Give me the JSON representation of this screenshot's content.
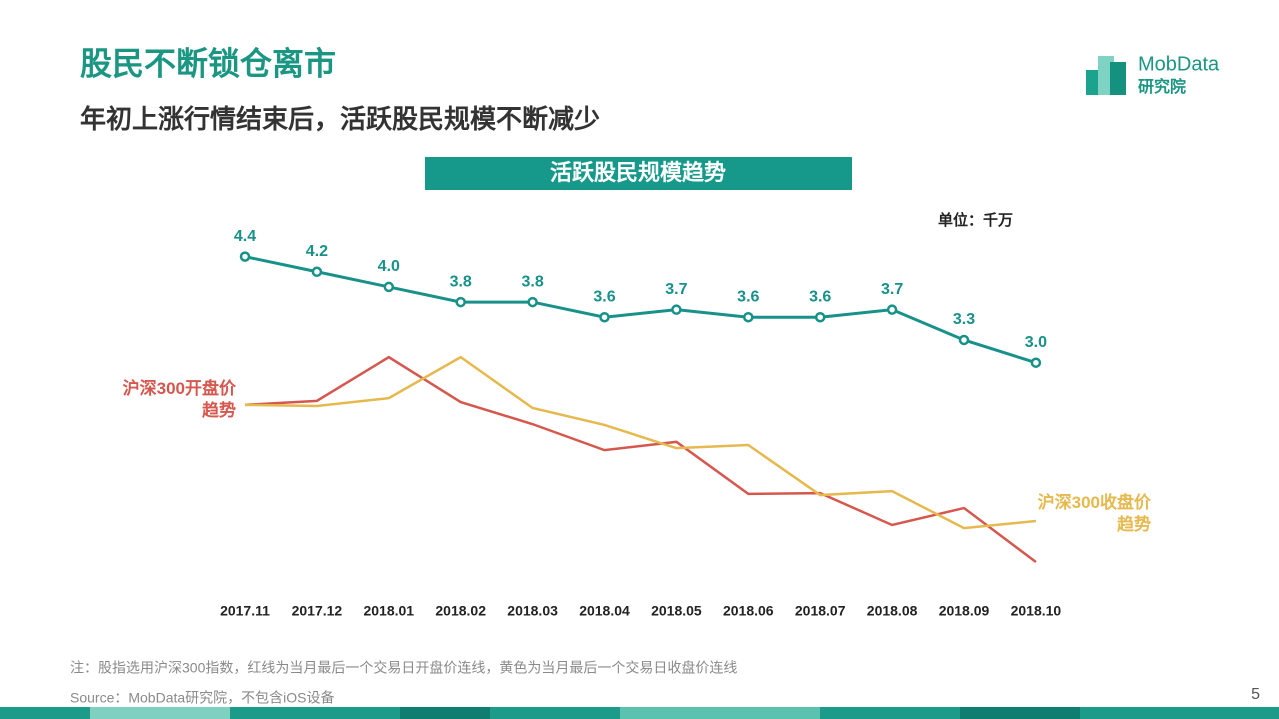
{
  "header": {
    "title": "股民不断锁仓离市",
    "subtitle": "年初上涨行情结束后，活跃股民规模不断减少"
  },
  "logo": {
    "brand": "MobData",
    "sub": "研究院"
  },
  "chart_data": {
    "type": "line",
    "title": "活跃股民规模趋势",
    "unit_label": "单位：千万",
    "categories": [
      "2017.11",
      "2017.12",
      "2018.01",
      "2018.02",
      "2018.03",
      "2018.04",
      "2018.05",
      "2018.06",
      "2018.07",
      "2018.08",
      "2018.09",
      "2018.10"
    ],
    "ylim": [
      0,
      5.2
    ],
    "y2lim": [
      0,
      100
    ],
    "series": [
      {
        "color": "#17918a",
        "values": [
          4.4,
          4.2,
          4.0,
          3.8,
          3.8,
          3.6,
          3.7,
          3.6,
          3.6,
          3.7,
          3.3,
          3.0
        ],
        "value_labels": [
          "4.4",
          "4.2",
          "4.0",
          "3.8",
          "3.8",
          "3.6",
          "3.7",
          "3.6",
          "3.6",
          "3.7",
          "3.3",
          "3.0"
        ]
      },
      {
        "name": "沪深300开盘价趋势",
        "color": "#d6574d",
        "axis": "y2",
        "values": [
          47.0,
          48.0,
          59.1,
          47.7,
          42.1,
          35.5,
          37.6,
          24.4,
          24.6,
          16.5,
          20.8,
          7.1
        ]
      },
      {
        "name": "沪深300收盘价趋势",
        "color": "#e6b94e",
        "axis": "y2",
        "values": [
          47.0,
          46.7,
          48.7,
          59.1,
          46.2,
          41.9,
          36.0,
          36.8,
          24.1,
          25.1,
          15.7,
          17.5
        ]
      }
    ]
  },
  "footer": {
    "note": "注：股指选用沪深300指数，红线为当月最后一个交易日开盘价连线，黄色为当月最后一个交易日收盘价连线",
    "source": "Source：MobData研究院，不包含iOS设备",
    "page": "5"
  }
}
